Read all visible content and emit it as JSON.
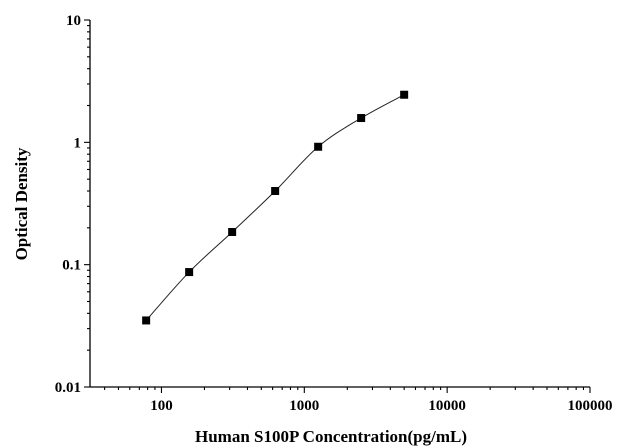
{
  "chart_data": {
    "type": "scatter",
    "title": "",
    "xlabel": "Human S100P Concentration(pg/mL)",
    "ylabel": "Optical Density",
    "xscale": "log",
    "yscale": "log",
    "xlim": [
      31.6,
      100000
    ],
    "ylim": [
      0.01,
      10
    ],
    "x_ticks": [
      {
        "value": 100,
        "label": "100"
      },
      {
        "value": 1000,
        "label": "1000"
      },
      {
        "value": 10000,
        "label": "10000"
      },
      {
        "value": 100000,
        "label": "100000"
      }
    ],
    "y_ticks": [
      {
        "value": 0.01,
        "label": "0.01"
      },
      {
        "value": 0.1,
        "label": "0.1"
      },
      {
        "value": 1,
        "label": "1"
      },
      {
        "value": 10,
        "label": "10"
      }
    ],
    "grid": false,
    "legend": "none",
    "marker": "square",
    "fitted_curve": true,
    "series": [
      {
        "x": [
          78.125,
          156.25,
          312.5,
          625,
          1250,
          2500,
          5000
        ],
        "y": [
          0.035,
          0.087,
          0.185,
          0.4,
          0.92,
          1.58,
          2.45
        ]
      }
    ],
    "colors": {
      "marker": "#000000",
      "line": "#222222",
      "axis": "#000000"
    }
  }
}
